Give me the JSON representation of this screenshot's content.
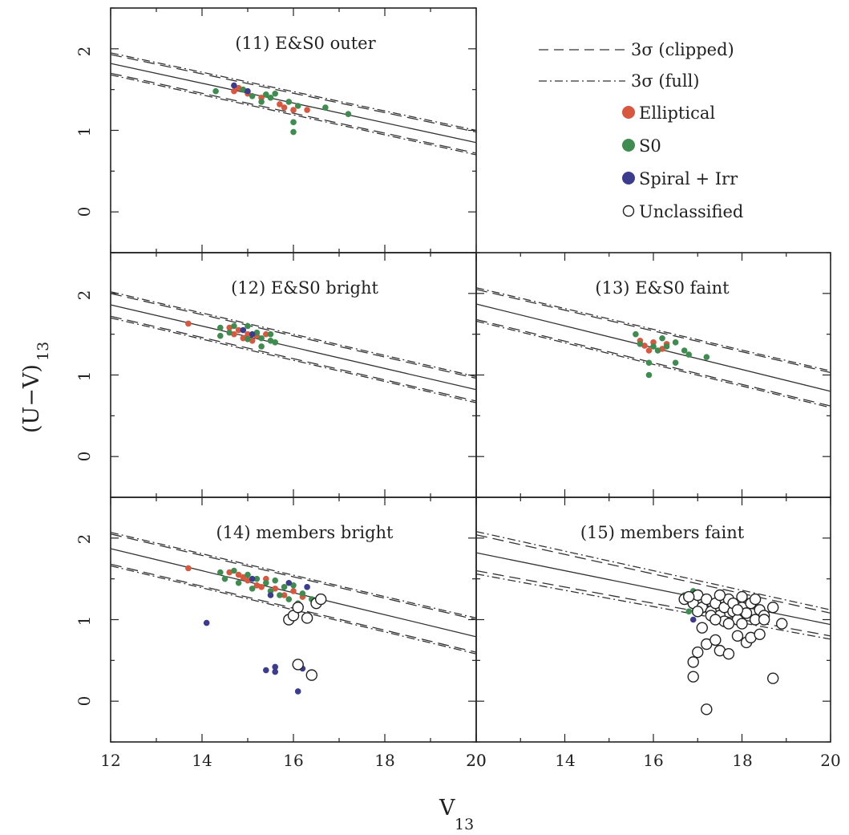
{
  "figure": {
    "xlabel_main": "V",
    "xlabel_sub": "13",
    "ylabel_main": "(U−V)",
    "ylabel_sub": "13"
  },
  "legend": {
    "clipped_label": "3σ (clipped)",
    "full_label": "3σ (full)",
    "elliptical_label": "Elliptical",
    "s0_label": "S0",
    "spiral_label": "Spiral + Irr",
    "unclassified_label": "Unclassified"
  },
  "colors": {
    "elliptical": "#d8573f",
    "s0": "#3f8c50",
    "spiral": "#3b3c8e",
    "unclassified": "#ffffff",
    "line": "#333333"
  },
  "ticks": {
    "x_left": [
      "12",
      "14",
      "16",
      "18",
      "20"
    ],
    "x_right": [
      "20",
      "14",
      "16",
      "18",
      "20"
    ],
    "y": [
      "0",
      "1",
      "2"
    ]
  },
  "chart_data": [
    {
      "type": "scatter",
      "title": "(11) E&S0 outer",
      "xlim": [
        12,
        20
      ],
      "ylim": [
        -0.5,
        2.5
      ],
      "fit": {
        "x": [
          12,
          20
        ],
        "y": [
          1.82,
          0.85
        ]
      },
      "band_clipped": [
        {
          "x": [
            12,
            20
          ],
          "y": [
            1.93,
            0.98
          ]
        },
        {
          "x": [
            12,
            20
          ],
          "y": [
            1.7,
            0.72
          ]
        }
      ],
      "band_full": [
        {
          "x": [
            12,
            20
          ],
          "y": [
            1.95,
            1.0
          ]
        },
        {
          "x": [
            12,
            20
          ],
          "y": [
            1.68,
            0.7
          ]
        }
      ],
      "series": [
        {
          "name": "Elliptical",
          "points": [
            [
              14.8,
              1.52
            ],
            [
              15.0,
              1.45
            ],
            [
              15.7,
              1.32
            ],
            [
              15.8,
              1.28
            ],
            [
              16.0,
              1.25
            ],
            [
              16.3,
              1.25
            ],
            [
              15.3,
              1.4
            ],
            [
              14.7,
              1.48
            ]
          ]
        },
        {
          "name": "S0",
          "points": [
            [
              14.3,
              1.48
            ],
            [
              14.9,
              1.5
            ],
            [
              15.1,
              1.42
            ],
            [
              15.4,
              1.44
            ],
            [
              15.6,
              1.45
            ],
            [
              15.9,
              1.35
            ],
            [
              16.1,
              1.3
            ],
            [
              15.3,
              1.35
            ],
            [
              16.7,
              1.28
            ],
            [
              17.2,
              1.2
            ],
            [
              16.0,
              0.98
            ],
            [
              16.0,
              1.1
            ],
            [
              15.5,
              1.4
            ]
          ]
        },
        {
          "name": "Spiral + Irr",
          "points": [
            [
              14.7,
              1.55
            ],
            [
              15.0,
              1.48
            ]
          ]
        }
      ]
    },
    {
      "type": "scatter",
      "title": "(12) E&S0 bright",
      "xlim": [
        12,
        20
      ],
      "ylim": [
        -0.5,
        2.5
      ],
      "fit": {
        "x": [
          12,
          20
        ],
        "y": [
          1.86,
          0.82
        ]
      },
      "band_clipped": [
        {
          "x": [
            12,
            20
          ],
          "y": [
            2.0,
            0.96
          ]
        },
        {
          "x": [
            12,
            20
          ],
          "y": [
            1.72,
            0.68
          ]
        }
      ],
      "band_full": [
        {
          "x": [
            12,
            20
          ],
          "y": [
            2.02,
            0.98
          ]
        },
        {
          "x": [
            12,
            20
          ],
          "y": [
            1.7,
            0.66
          ]
        }
      ],
      "series": [
        {
          "name": "Elliptical",
          "points": [
            [
              13.7,
              1.63
            ],
            [
              14.6,
              1.58
            ],
            [
              14.8,
              1.55
            ],
            [
              15.0,
              1.5
            ],
            [
              14.9,
              1.45
            ],
            [
              15.2,
              1.48
            ],
            [
              15.1,
              1.42
            ],
            [
              15.4,
              1.5
            ],
            [
              14.7,
              1.5
            ]
          ]
        },
        {
          "name": "S0",
          "points": [
            [
              14.4,
              1.58
            ],
            [
              14.4,
              1.48
            ],
            [
              14.7,
              1.6
            ],
            [
              15.0,
              1.6
            ],
            [
              15.2,
              1.52
            ],
            [
              15.3,
              1.45
            ],
            [
              15.5,
              1.42
            ],
            [
              15.6,
              1.4
            ],
            [
              15.3,
              1.35
            ],
            [
              15.0,
              1.44
            ],
            [
              15.5,
              1.5
            ],
            [
              14.6,
              1.52
            ]
          ]
        },
        {
          "name": "Spiral + Irr",
          "points": [
            [
              14.9,
              1.55
            ],
            [
              15.1,
              1.5
            ]
          ]
        }
      ]
    },
    {
      "type": "scatter",
      "title": "(13) E&S0 faint",
      "xlim": [
        12,
        20
      ],
      "ylim": [
        -0.5,
        2.5
      ],
      "fit": {
        "x": [
          12,
          20
        ],
        "y": [
          1.87,
          0.8
        ]
      },
      "band_clipped": [
        {
          "x": [
            12,
            20
          ],
          "y": [
            2.05,
            1.03
          ]
        },
        {
          "x": [
            12,
            20
          ],
          "y": [
            1.68,
            0.62
          ]
        }
      ],
      "band_full": [
        {
          "x": [
            12,
            20
          ],
          "y": [
            2.07,
            1.05
          ]
        },
        {
          "x": [
            12,
            20
          ],
          "y": [
            1.66,
            0.6
          ]
        }
      ],
      "series": [
        {
          "name": "Elliptical",
          "points": [
            [
              15.7,
              1.42
            ],
            [
              15.8,
              1.36
            ],
            [
              16.0,
              1.4
            ],
            [
              16.2,
              1.32
            ],
            [
              15.9,
              1.3
            ],
            [
              16.3,
              1.38
            ]
          ]
        },
        {
          "name": "S0",
          "points": [
            [
              15.6,
              1.5
            ],
            [
              15.7,
              1.38
            ],
            [
              16.0,
              1.35
            ],
            [
              16.1,
              1.3
            ],
            [
              16.3,
              1.35
            ],
            [
              16.5,
              1.4
            ],
            [
              16.7,
              1.3
            ],
            [
              16.8,
              1.25
            ],
            [
              17.2,
              1.22
            ],
            [
              15.9,
              1.15
            ],
            [
              15.9,
              1.0
            ],
            [
              16.5,
              1.15
            ],
            [
              16.2,
              1.45
            ]
          ]
        }
      ]
    },
    {
      "type": "scatter",
      "title": "(14) members bright",
      "xlim": [
        12,
        20
      ],
      "ylim": [
        -0.5,
        2.5
      ],
      "fit": {
        "x": [
          12,
          20
        ],
        "y": [
          1.87,
          0.79
        ]
      },
      "band_clipped": [
        {
          "x": [
            12,
            20
          ],
          "y": [
            2.05,
            1.0
          ]
        },
        {
          "x": [
            12,
            20
          ],
          "y": [
            1.68,
            0.6
          ]
        }
      ],
      "band_full": [
        {
          "x": [
            12,
            20
          ],
          "y": [
            2.07,
            1.02
          ]
        },
        {
          "x": [
            12,
            20
          ],
          "y": [
            1.66,
            0.58
          ]
        }
      ],
      "series": [
        {
          "name": "Elliptical",
          "points": [
            [
              13.7,
              1.63
            ],
            [
              14.6,
              1.58
            ],
            [
              14.8,
              1.55
            ],
            [
              15.0,
              1.48
            ],
            [
              15.2,
              1.42
            ],
            [
              15.4,
              1.5
            ],
            [
              15.6,
              1.38
            ],
            [
              15.8,
              1.3
            ],
            [
              16.0,
              1.35
            ],
            [
              15.3,
              1.4
            ],
            [
              14.9,
              1.52
            ],
            [
              16.2,
              1.28
            ]
          ]
        },
        {
          "name": "S0",
          "points": [
            [
              14.4,
              1.58
            ],
            [
              14.5,
              1.5
            ],
            [
              14.7,
              1.6
            ],
            [
              15.0,
              1.55
            ],
            [
              15.2,
              1.5
            ],
            [
              15.4,
              1.45
            ],
            [
              15.6,
              1.48
            ],
            [
              15.8,
              1.4
            ],
            [
              16.0,
              1.42
            ],
            [
              16.2,
              1.32
            ],
            [
              16.4,
              1.25
            ],
            [
              15.5,
              1.35
            ],
            [
              15.9,
              1.25
            ],
            [
              16.1,
              1.2
            ],
            [
              14.8,
              1.45
            ],
            [
              15.1,
              1.38
            ],
            [
              15.7,
              1.3
            ]
          ]
        },
        {
          "name": "Spiral + Irr",
          "points": [
            [
              14.1,
              0.96
            ],
            [
              15.4,
              0.38
            ],
            [
              15.6,
              0.36
            ],
            [
              15.6,
              0.42
            ],
            [
              16.1,
              0.12
            ],
            [
              16.2,
              0.4
            ],
            [
              15.1,
              1.5
            ],
            [
              15.9,
              1.45
            ],
            [
              16.3,
              1.4
            ],
            [
              15.5,
              1.3
            ]
          ]
        },
        {
          "name": "Unclassified",
          "points": [
            [
              15.9,
              1.0
            ],
            [
              16.0,
              1.05
            ],
            [
              16.1,
              0.45
            ],
            [
              16.4,
              0.32
            ],
            [
              16.3,
              1.02
            ],
            [
              16.5,
              1.2
            ],
            [
              16.6,
              1.25
            ],
            [
              16.1,
              1.15
            ]
          ]
        }
      ]
    },
    {
      "type": "scatter",
      "title": "(15) members faint",
      "xlim": [
        12,
        20
      ],
      "ylim": [
        -0.5,
        2.5
      ],
      "fit": {
        "x": [
          12,
          20
        ],
        "y": [
          1.82,
          0.94
        ]
      },
      "band_clipped": [
        {
          "x": [
            12,
            20
          ],
          "y": [
            2.04,
            1.08
          ]
        },
        {
          "x": [
            12,
            20
          ],
          "y": [
            1.6,
            0.8
          ]
        }
      ],
      "band_full": [
        {
          "x": [
            12,
            20
          ],
          "y": [
            2.08,
            1.12
          ]
        },
        {
          "x": [
            12,
            20
          ],
          "y": [
            1.56,
            0.76
          ]
        }
      ],
      "series": [
        {
          "name": "S0",
          "points": [
            [
              16.7,
              1.3
            ],
            [
              16.8,
              1.22
            ],
            [
              16.9,
              1.35
            ],
            [
              16.8,
              1.1
            ]
          ]
        },
        {
          "name": "Spiral + Irr",
          "points": [
            [
              16.9,
              1.0
            ],
            [
              17.2,
              1.15
            ]
          ]
        },
        {
          "name": "Unclassified",
          "points": [
            [
              16.7,
              1.25
            ],
            [
              16.9,
              1.2
            ],
            [
              17.0,
              1.3
            ],
            [
              17.1,
              1.15
            ],
            [
              17.2,
              1.25
            ],
            [
              17.3,
              1.1
            ],
            [
              17.4,
              1.2
            ],
            [
              17.5,
              1.05
            ],
            [
              17.6,
              1.15
            ],
            [
              17.7,
              1.25
            ],
            [
              17.8,
              1.1
            ],
            [
              17.9,
              1.0
            ],
            [
              18.0,
              1.15
            ],
            [
              18.1,
              1.08
            ],
            [
              18.2,
              1.2
            ],
            [
              18.3,
              1.0
            ],
            [
              18.4,
              1.12
            ],
            [
              18.5,
              1.05
            ],
            [
              18.7,
              1.15
            ],
            [
              18.9,
              0.95
            ],
            [
              17.5,
              1.3
            ],
            [
              17.8,
              1.2
            ],
            [
              18.0,
              0.95
            ],
            [
              17.3,
              1.05
            ],
            [
              17.6,
              0.98
            ],
            [
              16.9,
              0.3
            ],
            [
              16.9,
              0.48
            ],
            [
              17.0,
              0.6
            ],
            [
              17.2,
              0.7
            ],
            [
              17.4,
              0.75
            ],
            [
              17.5,
              0.62
            ],
            [
              17.7,
              0.58
            ],
            [
              17.9,
              0.8
            ],
            [
              18.1,
              0.72
            ],
            [
              18.2,
              0.78
            ],
            [
              18.4,
              0.82
            ],
            [
              18.7,
              0.28
            ],
            [
              17.2,
              -0.1
            ],
            [
              17.1,
              0.9
            ],
            [
              18.0,
              1.28
            ],
            [
              18.3,
              1.25
            ],
            [
              17.0,
              1.1
            ],
            [
              17.4,
              1.0
            ],
            [
              17.7,
              0.95
            ],
            [
              18.5,
              1.0
            ],
            [
              16.8,
              1.28
            ],
            [
              17.9,
              1.12
            ]
          ]
        }
      ]
    }
  ]
}
